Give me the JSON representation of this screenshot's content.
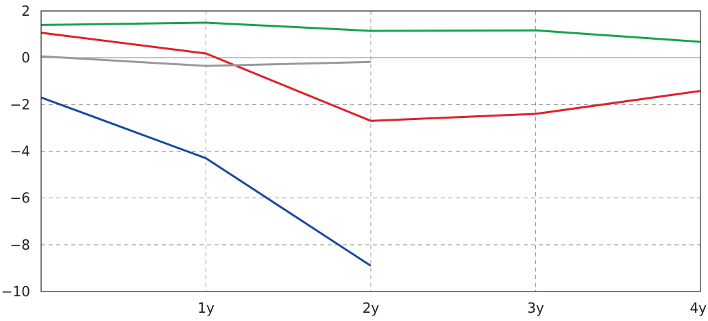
{
  "chart_data": {
    "type": "line",
    "title": "",
    "xlabel": "",
    "ylabel": "",
    "x_ticks": [
      {
        "value": 1,
        "label": "1y"
      },
      {
        "value": 2,
        "label": "2y"
      },
      {
        "value": 3,
        "label": "3y"
      },
      {
        "value": 4,
        "label": "4y"
      }
    ],
    "y_ticks": [
      {
        "value": 2,
        "label": "2"
      },
      {
        "value": 0,
        "label": "0"
      },
      {
        "value": -2,
        "label": "−2"
      },
      {
        "value": -4,
        "label": "−4"
      },
      {
        "value": -6,
        "label": "−6"
      },
      {
        "value": -8,
        "label": "−8"
      },
      {
        "value": -10,
        "label": "−10"
      }
    ],
    "xlim": [
      0,
      4
    ],
    "ylim": [
      -10,
      2
    ],
    "grid": true,
    "zero_line": true,
    "series": [
      {
        "color": "#1aa14b",
        "x": [
          0,
          1,
          2,
          3,
          4
        ],
        "y": [
          1.4,
          1.5,
          1.15,
          1.17,
          0.68
        ]
      },
      {
        "color": "#e0202a",
        "x": [
          0,
          1,
          2,
          3,
          4
        ],
        "y": [
          1.07,
          0.18,
          -2.7,
          -2.4,
          -1.42
        ]
      },
      {
        "color": "#999999",
        "x": [
          0,
          1,
          2
        ],
        "y": [
          0.06,
          -0.35,
          -0.18
        ]
      },
      {
        "color": "#174a9c",
        "x": [
          0,
          1,
          2
        ],
        "y": [
          -1.7,
          -4.3,
          -8.9
        ]
      }
    ]
  }
}
